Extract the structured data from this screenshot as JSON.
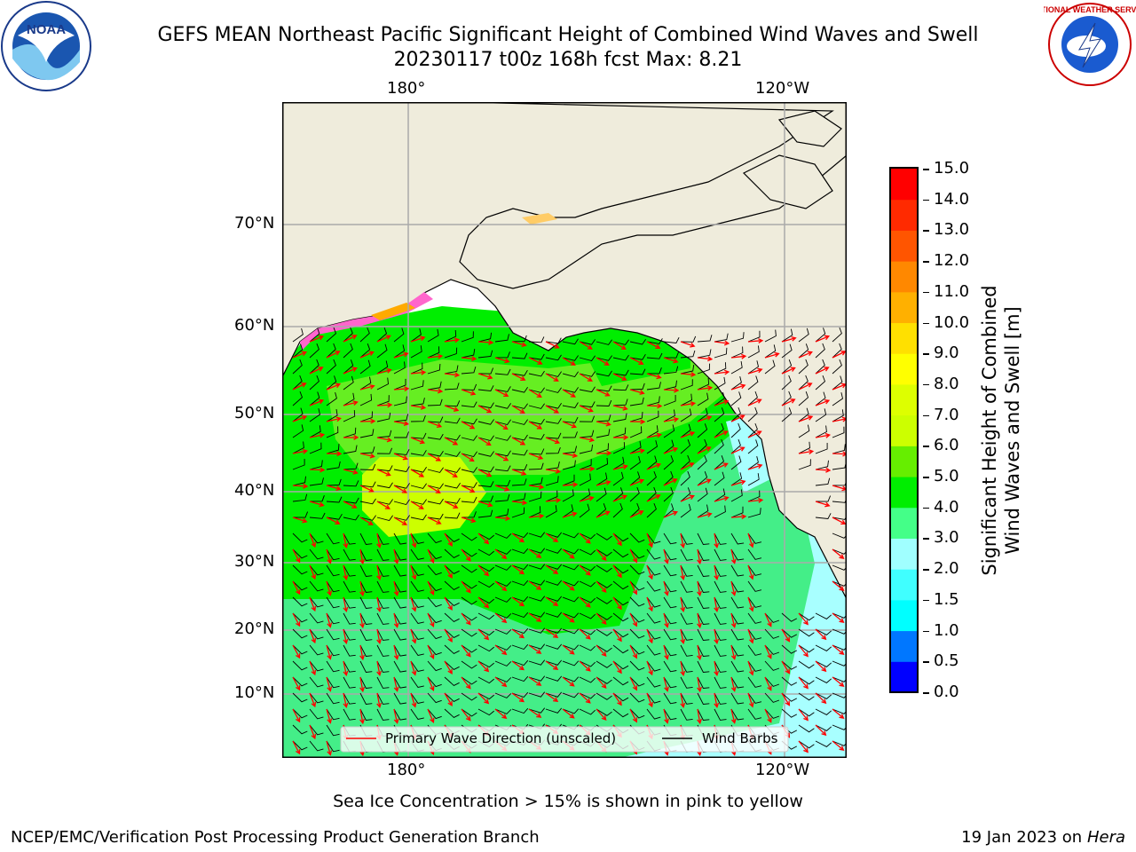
{
  "header": {
    "title_line1": "GEFS MEAN Northeast Pacific Significant Height of Combined Wind Waves and Swell",
    "title_line2": "20230117 t00z 168h fcst   Max: 8.21"
  },
  "logos": {
    "left": {
      "text": "NOAA",
      "icon": "noaa-logo-icon"
    },
    "right": {
      "text": "NATIONAL WEATHER SERVICE",
      "icon": "nws-logo-icon"
    }
  },
  "map": {
    "lon_labels": [
      "180°",
      "120°W"
    ],
    "lat_labels": [
      "70°N",
      "60°N",
      "50°N",
      "40°N",
      "30°N",
      "20°N",
      "10°N"
    ],
    "legend": {
      "wave_direction": "Primary Wave Direction (unscaled)",
      "wind_barbs": "Wind Barbs"
    },
    "colors": {
      "land": "#efecdc",
      "wave_arrow": "#ff0000",
      "barb": "#000000"
    }
  },
  "colorbar": {
    "label_line1": "Significant Height of Combined",
    "label_line2": "Wind Waves and Swell [m]",
    "ticks": [
      "0.0",
      "0.5",
      "1.0",
      "1.5",
      "2.0",
      "3.0",
      "4.0",
      "5.0",
      "6.0",
      "7.0",
      "8.0",
      "9.0",
      "10.0",
      "11.0",
      "12.0",
      "13.0",
      "14.0",
      "15.0"
    ],
    "colors": [
      "#0000ff",
      "#0077ff",
      "#00ffff",
      "#40ffff",
      "#a0ffff",
      "#44ff88",
      "#00ee00",
      "#66ee00",
      "#ccff00",
      "#ddff00",
      "#ffff00",
      "#ffe000",
      "#ffb000",
      "#ff8800",
      "#ff5500",
      "#ff2a00",
      "#ff0000"
    ]
  },
  "footer": {
    "note": "Sea Ice Concentration > 15% is shown in pink to yellow",
    "left": "NCEP/EMC/Verification Post Processing Product Generation Branch",
    "date": "19 Jan 2023 on ",
    "host": "Hera"
  }
}
